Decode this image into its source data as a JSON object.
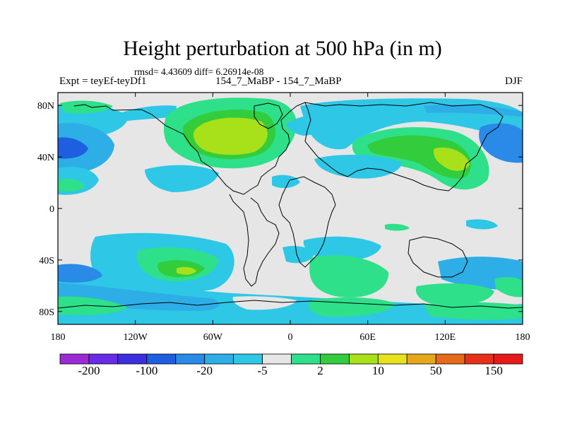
{
  "title": "Height perturbation at 500 hPa (in m)",
  "stats_line": "rmsd= 4.43609 diff= 6.26914e-08",
  "left_label": "Expt = teyEf-teyDf1",
  "center_label": "154_7_MaBP - 154_7_MaBP",
  "right_label": "DJF",
  "y_ticks": [
    "80N",
    "40N",
    "0",
    "40S",
    "80S"
  ],
  "x_ticks": [
    "180",
    "120W",
    "60W",
    "0",
    "60E",
    "120E",
    "180"
  ],
  "colorbar": {
    "labels": [
      "-200",
      "-100",
      "-20",
      "-5",
      "2",
      "10",
      "50",
      "150"
    ],
    "colors": [
      "#9a2bd6",
      "#6a2be6",
      "#3b2fe0",
      "#1d5fe0",
      "#2a8ae8",
      "#2eaee6",
      "#2ec7e6",
      "#e6e6e6",
      "#2ee08a",
      "#32cc3c",
      "#a8e01a",
      "#e6e21e",
      "#e6a81a",
      "#e66a1a",
      "#e6301a",
      "#e61a1a"
    ]
  },
  "fill_colors": {
    "neutral": "#e6e6e6",
    "cyan": "#2ec7e6",
    "sky": "#2eaee6",
    "blue": "#2a8ae8",
    "green": "#2ee08a",
    "darkgreen": "#32cc3c",
    "lime": "#a8e01a"
  }
}
